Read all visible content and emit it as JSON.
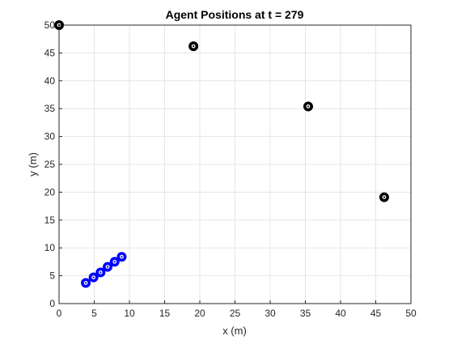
{
  "chart_data": {
    "type": "scatter",
    "title": "Agent Positions at  t = 279",
    "xlabel": "x (m)",
    "ylabel": "y (m)",
    "xlim": [
      0,
      50
    ],
    "ylim": [
      0,
      50
    ],
    "xticks": [
      "0",
      "5",
      "10",
      "15",
      "20",
      "25",
      "30",
      "35",
      "40",
      "45",
      "50"
    ],
    "yticks": [
      "0",
      "5",
      "10",
      "15",
      "20",
      "25",
      "30",
      "35",
      "40",
      "45",
      "50"
    ],
    "grid": true,
    "series": [
      {
        "color": "#000000",
        "marker": "ring",
        "points": [
          [
            0.0,
            50.0
          ],
          [
            19.1,
            46.2
          ],
          [
            35.4,
            35.4
          ],
          [
            46.2,
            19.1
          ]
        ]
      },
      {
        "color": "#0000ff",
        "marker": "ring",
        "points": [
          [
            3.8,
            3.7
          ],
          [
            4.9,
            4.7
          ],
          [
            5.9,
            5.6
          ],
          [
            6.9,
            6.6
          ],
          [
            7.9,
            7.5
          ],
          [
            8.9,
            8.4
          ]
        ]
      }
    ]
  }
}
